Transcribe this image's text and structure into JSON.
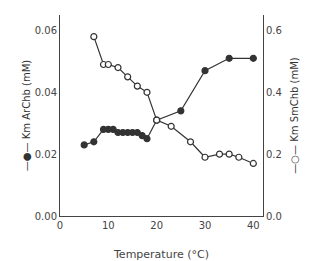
{
  "chart_data": {
    "type": "line",
    "xlabel": "Temperature (°C)",
    "ylabel": "—●— Km ArChb (mM)",
    "y2label": "—○— Km SmChb (mM)",
    "series": [
      {
        "x": [
          5,
          7,
          9,
          10,
          11,
          12,
          13,
          14,
          15,
          16,
          17,
          18,
          20,
          25,
          30,
          35,
          40
        ],
        "values": [
          0.023,
          0.024,
          0.028,
          0.028,
          0.028,
          0.027,
          0.027,
          0.027,
          0.027,
          0.027,
          0.026,
          0.025,
          0.031,
          0.034,
          0.047,
          0.051,
          0.051
        ],
        "color": "#333333",
        "marker": "circle"
      },
      {
        "x": [
          7,
          9,
          10,
          12,
          14,
          16,
          18,
          20,
          23,
          27,
          30,
          33,
          35,
          37,
          40
        ],
        "values": [
          0.58,
          0.49,
          0.49,
          0.48,
          0.45,
          0.42,
          0.4,
          0.31,
          0.29,
          0.24,
          0.19,
          0.2,
          0.2,
          0.19,
          0.17
        ],
        "color": "#333333",
        "marker": "open circle",
        "axis": "y2"
      }
    ],
    "xlim": [
      0,
      42
    ],
    "xticks": [
      0,
      10,
      20,
      30,
      40
    ],
    "ylim": [
      0.0,
      0.065
    ],
    "yticks": [
      {
        "value": 0.0,
        "label": "0.00"
      },
      0.02,
      0.04,
      0.06
    ],
    "y2lim": [
      0.0,
      0.65
    ],
    "y2ticks": [
      {
        "value": 0.0,
        "label": "0.0"
      },
      0.2,
      0.4,
      0.6
    ],
    "grid": false
  }
}
